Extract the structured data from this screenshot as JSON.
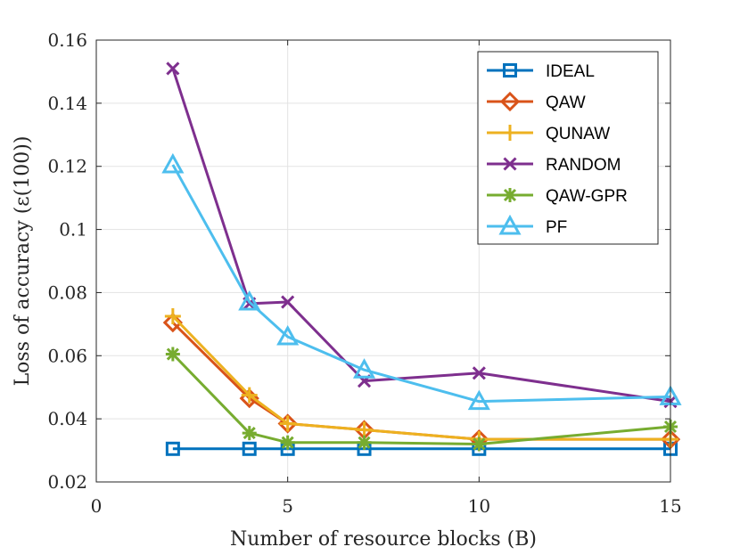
{
  "chart_data": {
    "type": "line",
    "title": "",
    "xlabel": "Number of resource blocks (B)",
    "ylabel": "Loss of accuracy (ε(100))",
    "xlim": [
      0,
      15
    ],
    "ylim": [
      0.02,
      0.16
    ],
    "xticks": [
      0,
      5,
      10,
      15
    ],
    "xtick_labels": [
      "0",
      "5",
      "10",
      "15"
    ],
    "yticks": [
      0.02,
      0.04,
      0.06,
      0.08,
      0.1,
      0.12,
      0.14,
      0.16
    ],
    "ytick_labels": [
      "0.02",
      "0.04",
      "0.06",
      "0.08",
      "0.1",
      "0.12",
      "0.14",
      "0.16"
    ],
    "grid": true,
    "legend_position": "top-right",
    "x": [
      2,
      4,
      5,
      7,
      10,
      15
    ],
    "series": [
      {
        "name": "IDEAL",
        "color": "#0072BD",
        "marker": "square",
        "values": [
          0.0305,
          0.0305,
          0.0305,
          0.0305,
          0.0305,
          0.0305
        ]
      },
      {
        "name": "QAW",
        "color": "#D95319",
        "marker": "diamond",
        "values": [
          0.0705,
          0.0465,
          0.0385,
          0.0365,
          0.0335,
          0.0335
        ]
      },
      {
        "name": "QUNAW",
        "color": "#EDB120",
        "marker": "plus",
        "values": [
          0.0725,
          0.0475,
          0.0385,
          0.0365,
          0.0335,
          0.0335
        ]
      },
      {
        "name": "RANDOM",
        "color": "#7E2F8E",
        "marker": "x",
        "values": [
          0.151,
          0.0765,
          0.077,
          0.052,
          0.0545,
          0.0455
        ]
      },
      {
        "name": "QAW-GPR",
        "color": "#77AC30",
        "marker": "asterisk",
        "values": [
          0.0605,
          0.0355,
          0.0325,
          0.0325,
          0.032,
          0.0375
        ]
      },
      {
        "name": "PF",
        "color": "#4DBEEE",
        "marker": "triangle",
        "values": [
          0.1205,
          0.077,
          0.066,
          0.0555,
          0.0455,
          0.047
        ]
      }
    ]
  }
}
